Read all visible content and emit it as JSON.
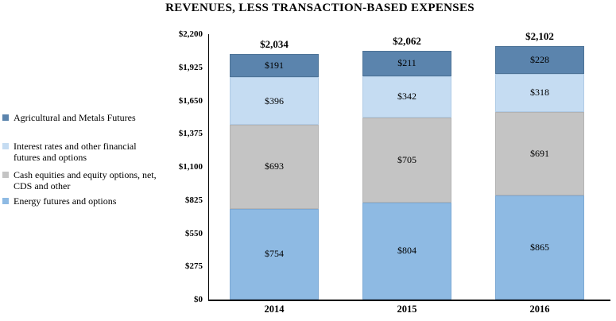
{
  "title": "REVENUES, LESS TRANSACTION-BASED EXPENSES",
  "chart_data": {
    "type": "bar",
    "stacked": true,
    "title": "REVENUES, LESS TRANSACTION-BASED EXPENSES",
    "categories": [
      "2014",
      "2015",
      "2016"
    ],
    "series": [
      {
        "name": "Energy futures and options",
        "values": [
          754,
          804,
          865
        ],
        "labels": [
          "$754",
          "$804",
          "$865"
        ],
        "color": "#8ebae3",
        "border": "#7da9d4"
      },
      {
        "name": "Cash equities and equity options, net, CDS and other",
        "values": [
          693,
          705,
          691
        ],
        "labels": [
          "$693",
          "$705",
          "$691"
        ],
        "color": "#c4c4c4",
        "border": "#b3b3b3"
      },
      {
        "name": "Interest rates and other financial futures and options",
        "values": [
          396,
          342,
          318
        ],
        "labels": [
          "$396",
          "$342",
          "$318"
        ],
        "color": "#c5dcf2",
        "border": "#b0cbe5"
      },
      {
        "name": "Agricultural and Metals Futures",
        "values": [
          191,
          211,
          228
        ],
        "labels": [
          "$191",
          "$211",
          "$228"
        ],
        "color": "#5b84ad",
        "border": "#4d7397"
      }
    ],
    "totals": [
      2034,
      2062,
      2102
    ],
    "total_labels": [
      "$2,034",
      "$2,062",
      "$2,102"
    ],
    "y_axis": {
      "max": 2200,
      "values": [
        0,
        275,
        550,
        825,
        1100,
        1375,
        1650,
        1925,
        2200
      ],
      "ticks": [
        "$0",
        "$275",
        "$550",
        "$825",
        "$1,100",
        "$1,375",
        "$1,650",
        "$1,925",
        "$2,200"
      ]
    },
    "legend": [
      {
        "label": "Agricultural and Metals Futures",
        "color": "#5b84ad"
      },
      {
        "label": "Interest rates and other financial\nfutures and options",
        "color": "#c5dcf2"
      },
      {
        "label": "Cash equities and equity options, net,\nCDS and other",
        "color": "#c4c4c4"
      },
      {
        "label": "Energy futures and options",
        "color": "#8ebae3"
      }
    ],
    "legend_position": "left",
    "grid": false
  }
}
